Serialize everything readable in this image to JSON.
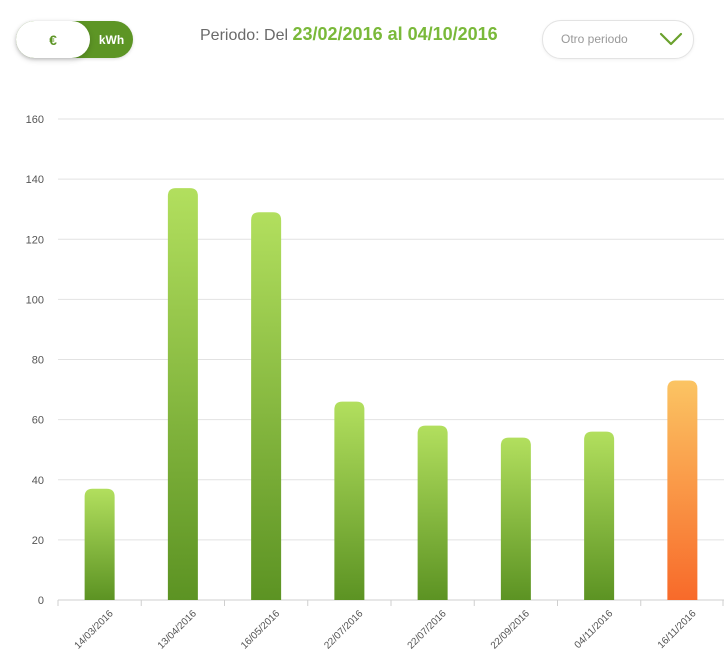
{
  "toggle": {
    "currency_label": "€",
    "energy_label": "kWh",
    "active": "kWh"
  },
  "period": {
    "prefix": "Periodo: Del",
    "range": "23/02/2016 al 04/10/2016"
  },
  "dropdown": {
    "selected": "Otro periodo",
    "icon": "chevron-down-icon"
  },
  "colors": {
    "accent_green": "#5d9525",
    "bar_green_top": "#b2df5e",
    "bar_green_bottom": "#5c9323",
    "bar_orange_top": "#fbc463",
    "bar_orange_bottom": "#f86a2a",
    "date_text": "#7ab93a"
  },
  "chart_data": {
    "type": "bar",
    "categories": [
      "14/03/2016",
      "13/04/2016",
      "16/05/2016",
      "22/07/2016",
      "22/07/2016",
      "22/09/2016",
      "04/11/2016",
      "16/11/2016"
    ],
    "values": [
      37,
      137,
      129,
      66,
      58,
      54,
      56,
      73
    ],
    "highlight_index": 7,
    "ylim": [
      0,
      160
    ],
    "yticks": [
      0,
      20,
      40,
      60,
      80,
      100,
      120,
      140,
      160
    ],
    "grid": true,
    "legend": "none"
  }
}
